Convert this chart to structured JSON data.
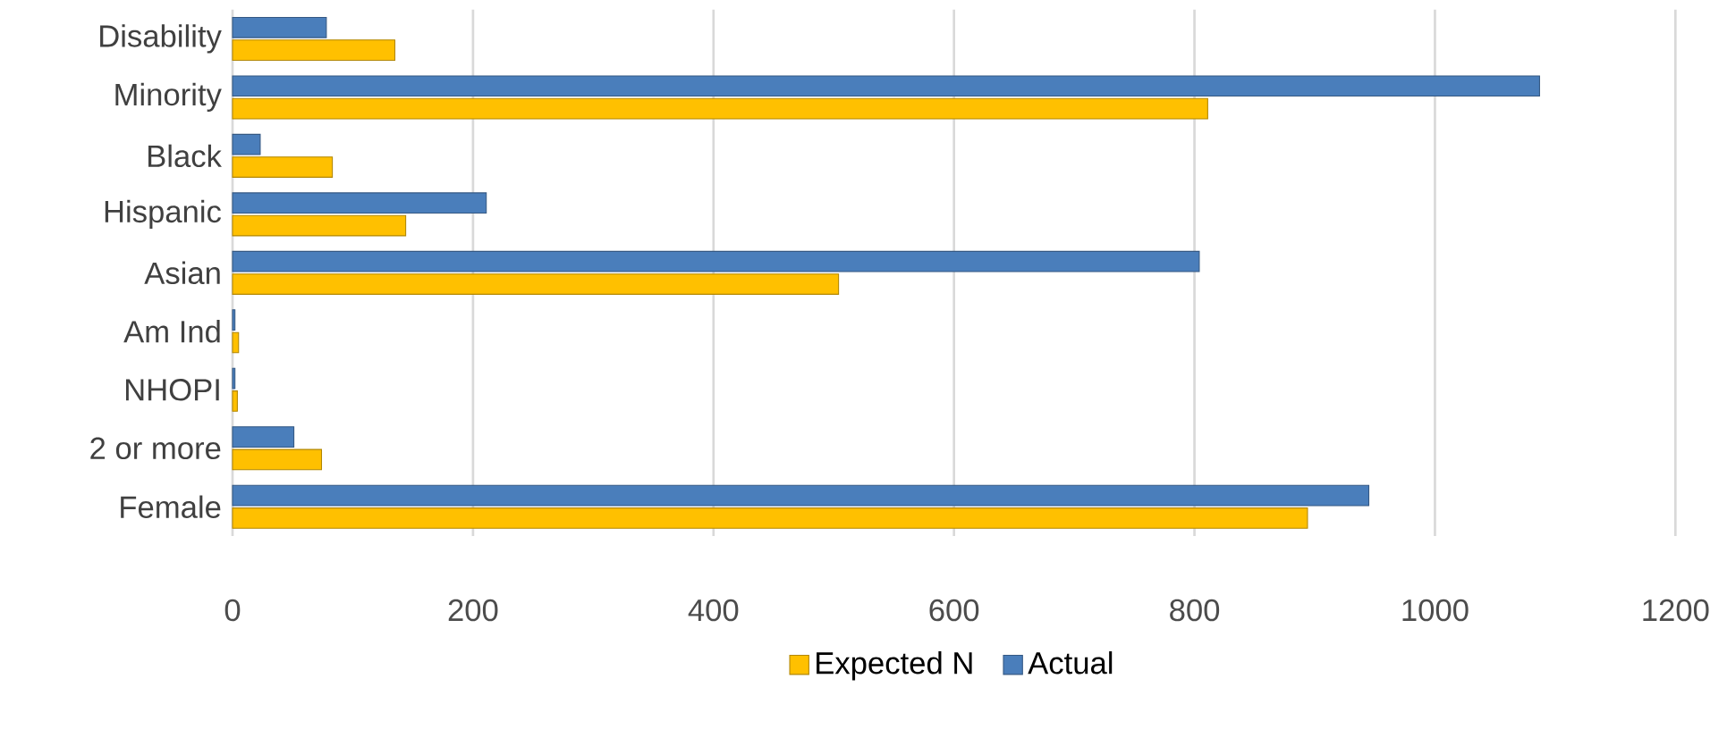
{
  "chart_data": {
    "type": "bar",
    "orientation": "horizontal",
    "categories": [
      "Disability",
      "Minority",
      "Black",
      "Hispanic",
      "Asian",
      "Am Ind",
      "NHOPI",
      "2 or more",
      "Female"
    ],
    "series": [
      {
        "name": "Expected N",
        "color": "#ffc000",
        "values": [
          135,
          811,
          83,
          144,
          504,
          5,
          4,
          74,
          894
        ]
      },
      {
        "name": "Actual",
        "color": "#4a7ebb",
        "values": [
          78,
          1087,
          23,
          211,
          804,
          2,
          2,
          51,
          945
        ]
      }
    ],
    "xlim": [
      0,
      1200
    ],
    "xticks": [
      0,
      200,
      400,
      600,
      800,
      1000,
      1200
    ],
    "grid": "x",
    "legend": "bottom"
  }
}
